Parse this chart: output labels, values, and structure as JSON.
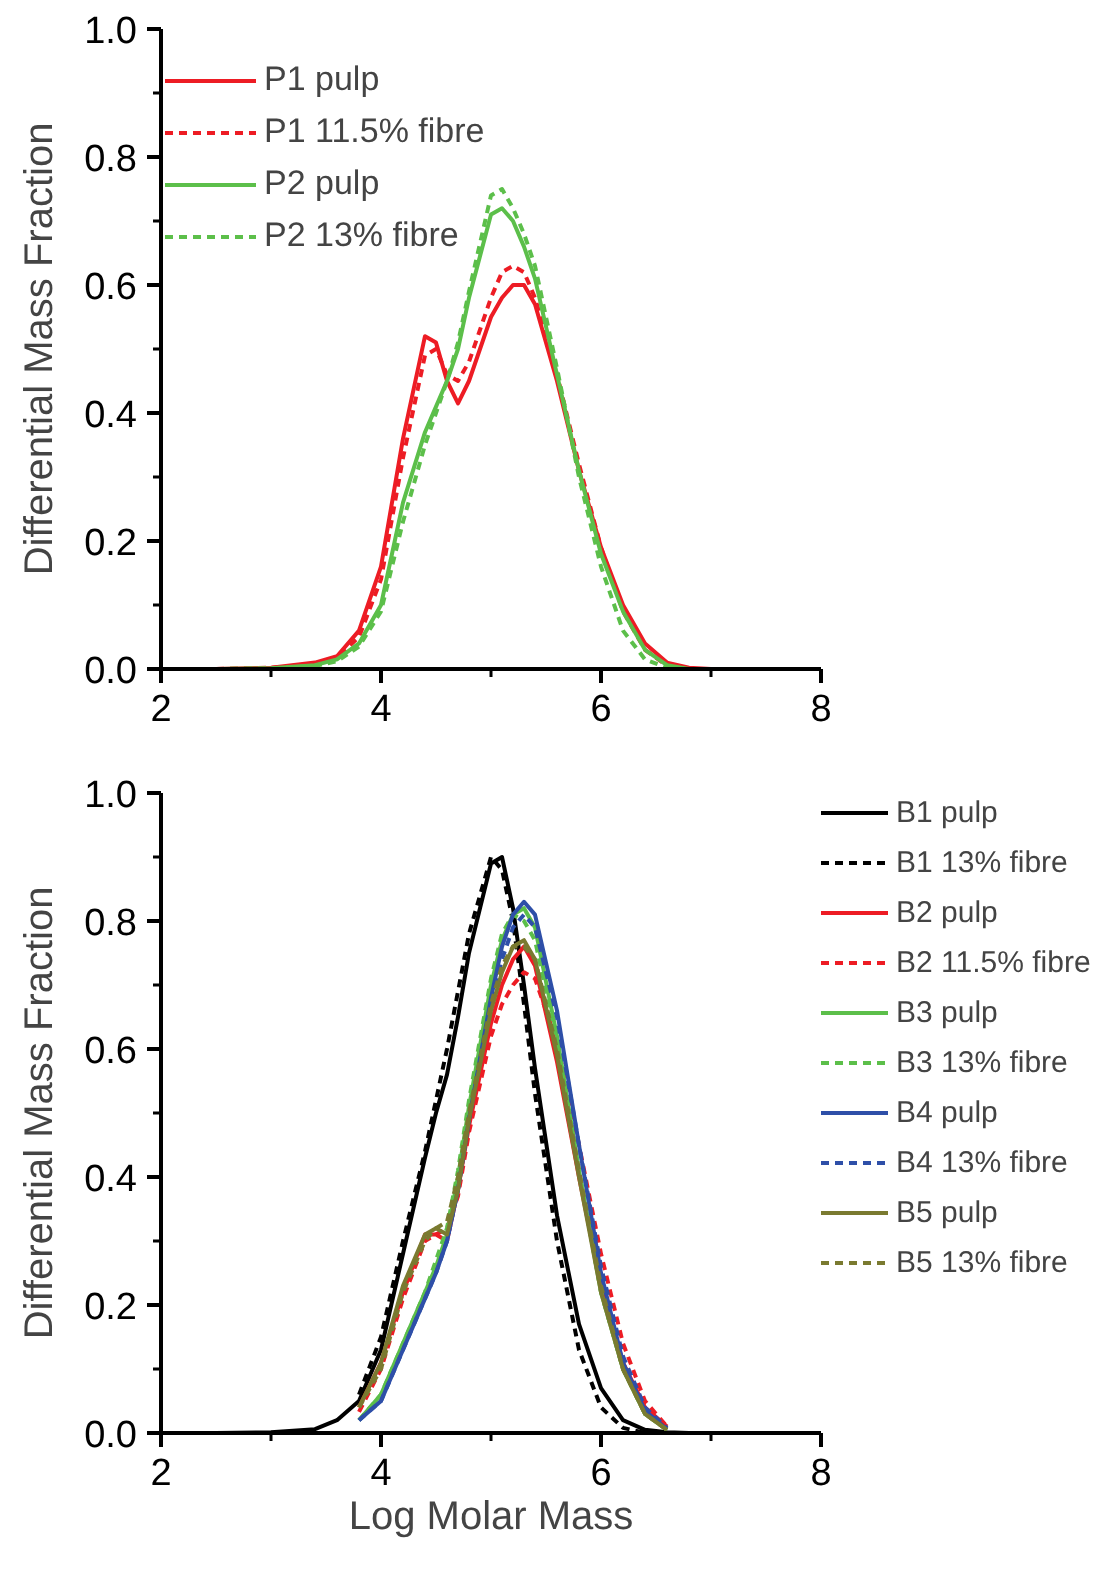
{
  "chart_data": [
    {
      "type": "line",
      "ylabel": "Differential Mass Fraction",
      "legend": "top left",
      "line_style": "solid",
      "marker": "none",
      "x": [
        2.5,
        3.0,
        3.4,
        3.6,
        3.8,
        4.0,
        4.2,
        4.4,
        4.5,
        4.6,
        4.7,
        4.8,
        5.0,
        5.1,
        5.2,
        5.3,
        5.4,
        5.6,
        5.8,
        6.0,
        6.2,
        6.4,
        6.6,
        6.8,
        7.0,
        8.0
      ],
      "xlim": [
        2,
        8
      ],
      "xticks": [
        2,
        4,
        6,
        8
      ],
      "ylim": [
        0,
        1
      ],
      "yticks": [
        {
          "value": 0,
          "label": "0.0"
        },
        {
          "value": 0.2,
          "label": "0.2"
        },
        {
          "value": 0.4,
          "label": "0.4"
        },
        {
          "value": 0.6,
          "label": "0.6"
        },
        {
          "value": 0.8,
          "label": "0.8"
        },
        {
          "value": 1,
          "label": "1.0"
        }
      ],
      "series": [
        {
          "name": "P1 pulp",
          "color": "#ed1c24",
          "values": [
            0,
            0.002,
            0.01,
            0.02,
            0.06,
            0.16,
            0.36,
            0.52,
            0.51,
            0.45,
            0.415,
            0.45,
            0.55,
            0.58,
            0.6,
            0.6,
            0.57,
            0.45,
            0.31,
            0.19,
            0.1,
            0.04,
            0.01,
            0.002,
            0,
            0
          ]
        },
        {
          "name": "P1 11.5% fibre",
          "color": "#ed1c24",
          "line_style": "dashed",
          "values": [
            0,
            0.002,
            0.008,
            0.018,
            0.05,
            0.14,
            0.33,
            0.49,
            0.5,
            0.46,
            0.45,
            0.48,
            0.58,
            0.62,
            0.63,
            0.62,
            0.58,
            0.46,
            0.32,
            0.19,
            0.09,
            0.03,
            0.005,
            0,
            0,
            0
          ]
        },
        {
          "name": "P2 pulp",
          "color": "#5cbf4a",
          "values": [
            0,
            0.001,
            0.006,
            0.015,
            0.04,
            0.1,
            0.26,
            0.37,
            0.41,
            0.45,
            0.5,
            0.58,
            0.71,
            0.72,
            0.7,
            0.66,
            0.61,
            0.46,
            0.31,
            0.18,
            0.09,
            0.03,
            0.006,
            0,
            0,
            0
          ]
        },
        {
          "name": "P2 13% fibre",
          "color": "#5cbf4a",
          "line_style": "dashed",
          "values": [
            0,
            0.001,
            0.005,
            0.012,
            0.035,
            0.09,
            0.23,
            0.35,
            0.4,
            0.45,
            0.51,
            0.59,
            0.74,
            0.75,
            0.72,
            0.68,
            0.63,
            0.47,
            0.3,
            0.16,
            0.06,
            0.015,
            0.002,
            0,
            0,
            0
          ]
        }
      ]
    },
    {
      "type": "line",
      "xlabel": "Log Molar Mass",
      "ylabel": "Differential Mass Fraction",
      "legend": "top right",
      "line_style": "solid",
      "marker": "none",
      "x": [
        2.5,
        3.0,
        3.4,
        3.6,
        3.8,
        4.0,
        4.2,
        4.4,
        4.5,
        4.6,
        4.7,
        4.8,
        5.0,
        5.1,
        5.2,
        5.3,
        5.4,
        5.6,
        5.8,
        6.0,
        6.2,
        6.4,
        6.6,
        6.8,
        7.0,
        8.0
      ],
      "xlim": [
        2,
        8
      ],
      "xticks": [
        2,
        4,
        6,
        8
      ],
      "ylim": [
        0,
        1
      ],
      "yticks": [
        {
          "value": 0,
          "label": "0.0"
        },
        {
          "value": 0.2,
          "label": "0.2"
        },
        {
          "value": 0.4,
          "label": "0.4"
        },
        {
          "value": 0.6,
          "label": "0.6"
        },
        {
          "value": 0.8,
          "label": "0.8"
        },
        {
          "value": 1,
          "label": "1.0"
        }
      ],
      "series": [
        {
          "name": "B1 pulp",
          "color": "#000000",
          "values": [
            0,
            0.001,
            0.006,
            0.02,
            0.05,
            0.13,
            0.28,
            0.43,
            0.5,
            0.56,
            0.65,
            0.75,
            0.89,
            0.9,
            0.82,
            0.7,
            0.57,
            0.34,
            0.17,
            0.07,
            0.02,
            0.005,
            0.001,
            0,
            0,
            0
          ]
        },
        {
          "name": "B1 13% fibre",
          "color": "#000000",
          "line_style": "dashed",
          "values": [
            null,
            null,
            null,
            null,
            0.06,
            0.15,
            0.3,
            0.44,
            0.52,
            0.6,
            0.69,
            0.78,
            0.9,
            0.88,
            0.8,
            0.67,
            0.53,
            0.3,
            0.13,
            0.04,
            0.008,
            0,
            null,
            null,
            null,
            null
          ]
        },
        {
          "name": "B2 pulp",
          "color": "#ed1c24",
          "values": [
            null,
            null,
            null,
            null,
            0.04,
            0.11,
            0.22,
            0.31,
            0.31,
            0.3,
            0.38,
            0.48,
            0.64,
            0.7,
            0.74,
            0.76,
            0.73,
            0.58,
            0.4,
            0.23,
            0.11,
            0.04,
            0.01,
            null,
            null,
            null
          ]
        },
        {
          "name": "B2 11.5% fibre",
          "color": "#ed1c24",
          "line_style": "dashed",
          "values": [
            null,
            null,
            null,
            null,
            0.033,
            0.1,
            0.21,
            0.3,
            0.31,
            0.32,
            0.37,
            0.47,
            0.62,
            0.67,
            0.7,
            0.72,
            0.71,
            0.61,
            0.45,
            0.28,
            0.14,
            0.05,
            0.01,
            null,
            null,
            null
          ]
        },
        {
          "name": "B3 pulp",
          "color": "#5cbf4a",
          "values": [
            null,
            null,
            null,
            null,
            0.02,
            0.06,
            0.14,
            0.22,
            0.26,
            0.31,
            0.4,
            0.51,
            0.7,
            0.77,
            0.81,
            0.82,
            0.79,
            0.62,
            0.41,
            0.22,
            0.1,
            0.03,
            0.005,
            null,
            null,
            null
          ]
        },
        {
          "name": "B3 13% fibre",
          "color": "#5cbf4a",
          "line_style": "dashed",
          "values": [
            null,
            null,
            null,
            null,
            0.02,
            0.06,
            0.14,
            0.22,
            0.27,
            0.32,
            0.41,
            0.52,
            0.71,
            0.78,
            0.81,
            0.8,
            0.77,
            0.61,
            0.41,
            0.22,
            0.1,
            0.03,
            0.005,
            null,
            null,
            null
          ]
        },
        {
          "name": "B4 pulp",
          "color": "#2e4fa8",
          "values": [
            null,
            null,
            null,
            null,
            0.02,
            0.05,
            0.13,
            0.21,
            0.25,
            0.3,
            0.38,
            0.49,
            0.68,
            0.76,
            0.81,
            0.83,
            0.81,
            0.66,
            0.45,
            0.25,
            0.11,
            0.035,
            0.006,
            null,
            null,
            null
          ]
        },
        {
          "name": "B4 13% fibre",
          "color": "#2e4fa8",
          "line_style": "dashed",
          "values": [
            null,
            null,
            null,
            null,
            0.02,
            0.05,
            0.13,
            0.21,
            0.25,
            0.3,
            0.38,
            0.49,
            0.67,
            0.74,
            0.79,
            0.81,
            0.79,
            0.65,
            0.45,
            0.26,
            0.12,
            0.04,
            0.008,
            null,
            null,
            null
          ]
        },
        {
          "name": "B5 pulp",
          "color": "#7a7a30",
          "values": [
            null,
            null,
            null,
            null,
            0.04,
            0.11,
            0.23,
            0.31,
            0.32,
            0.31,
            0.38,
            0.49,
            0.66,
            0.72,
            0.76,
            0.77,
            0.74,
            0.59,
            0.4,
            0.22,
            0.1,
            0.03,
            0.005,
            null,
            null,
            null
          ]
        },
        {
          "name": "B5 13% fibre",
          "color": "#7a7a30",
          "line_style": "dashed",
          "values": [
            null,
            null,
            null,
            null,
            0.04,
            0.1,
            0.22,
            0.3,
            0.32,
            0.33,
            0.4,
            0.5,
            0.67,
            0.73,
            0.76,
            0.76,
            0.74,
            0.6,
            0.41,
            0.23,
            0.1,
            0.03,
            0.005,
            null,
            null,
            null
          ]
        }
      ]
    }
  ]
}
